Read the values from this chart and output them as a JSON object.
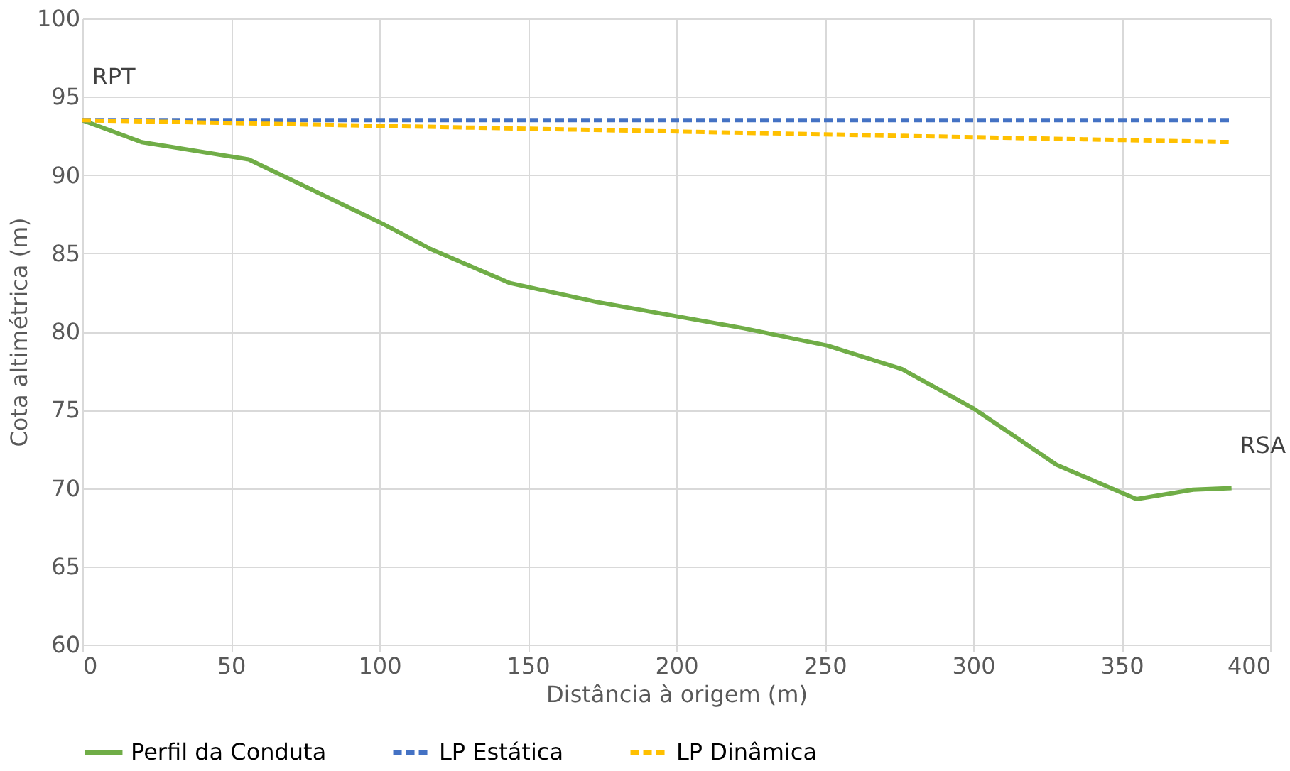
{
  "chart_data": {
    "type": "line",
    "xlabel": "Distância à origem (m)",
    "ylabel": "Cota altimétrica (m)",
    "xlim": [
      0,
      400
    ],
    "xticks": [
      0,
      50,
      100,
      150,
      200,
      250,
      300,
      350,
      400
    ],
    "ylim": [
      60,
      100
    ],
    "yticks": [
      60,
      65,
      70,
      75,
      80,
      85,
      90,
      95,
      100
    ],
    "grid": true,
    "legend": "bottom",
    "marker": "none",
    "series": [
      {
        "name": "Perfil da Conduta",
        "color": "#70ad47",
        "line_style": "solid",
        "x": [
          0,
          20,
          56,
          101,
          117,
          144,
          173,
          223,
          251,
          276,
          300,
          328,
          355,
          374,
          387
        ],
        "values": [
          93.5,
          92.1,
          91.0,
          86.9,
          85.3,
          83.1,
          81.9,
          80.2,
          79.1,
          77.6,
          75.1,
          71.5,
          69.3,
          69.9,
          70.0
        ]
      },
      {
        "name": "LP Estática",
        "color": "#4472c4",
        "line_style": "dashed",
        "x": [
          0,
          387
        ],
        "values": [
          93.5,
          93.5
        ]
      },
      {
        "name": "LP Dinâmica",
        "color": "#ffc000",
        "line_style": "dashed",
        "x": [
          0,
          387
        ],
        "values": [
          93.5,
          92.1
        ]
      }
    ],
    "annotations": [
      {
        "text": "RPT",
        "x": 0,
        "y": 93.5
      },
      {
        "text": "RSA",
        "x": 387,
        "y": 70.0
      }
    ]
  }
}
